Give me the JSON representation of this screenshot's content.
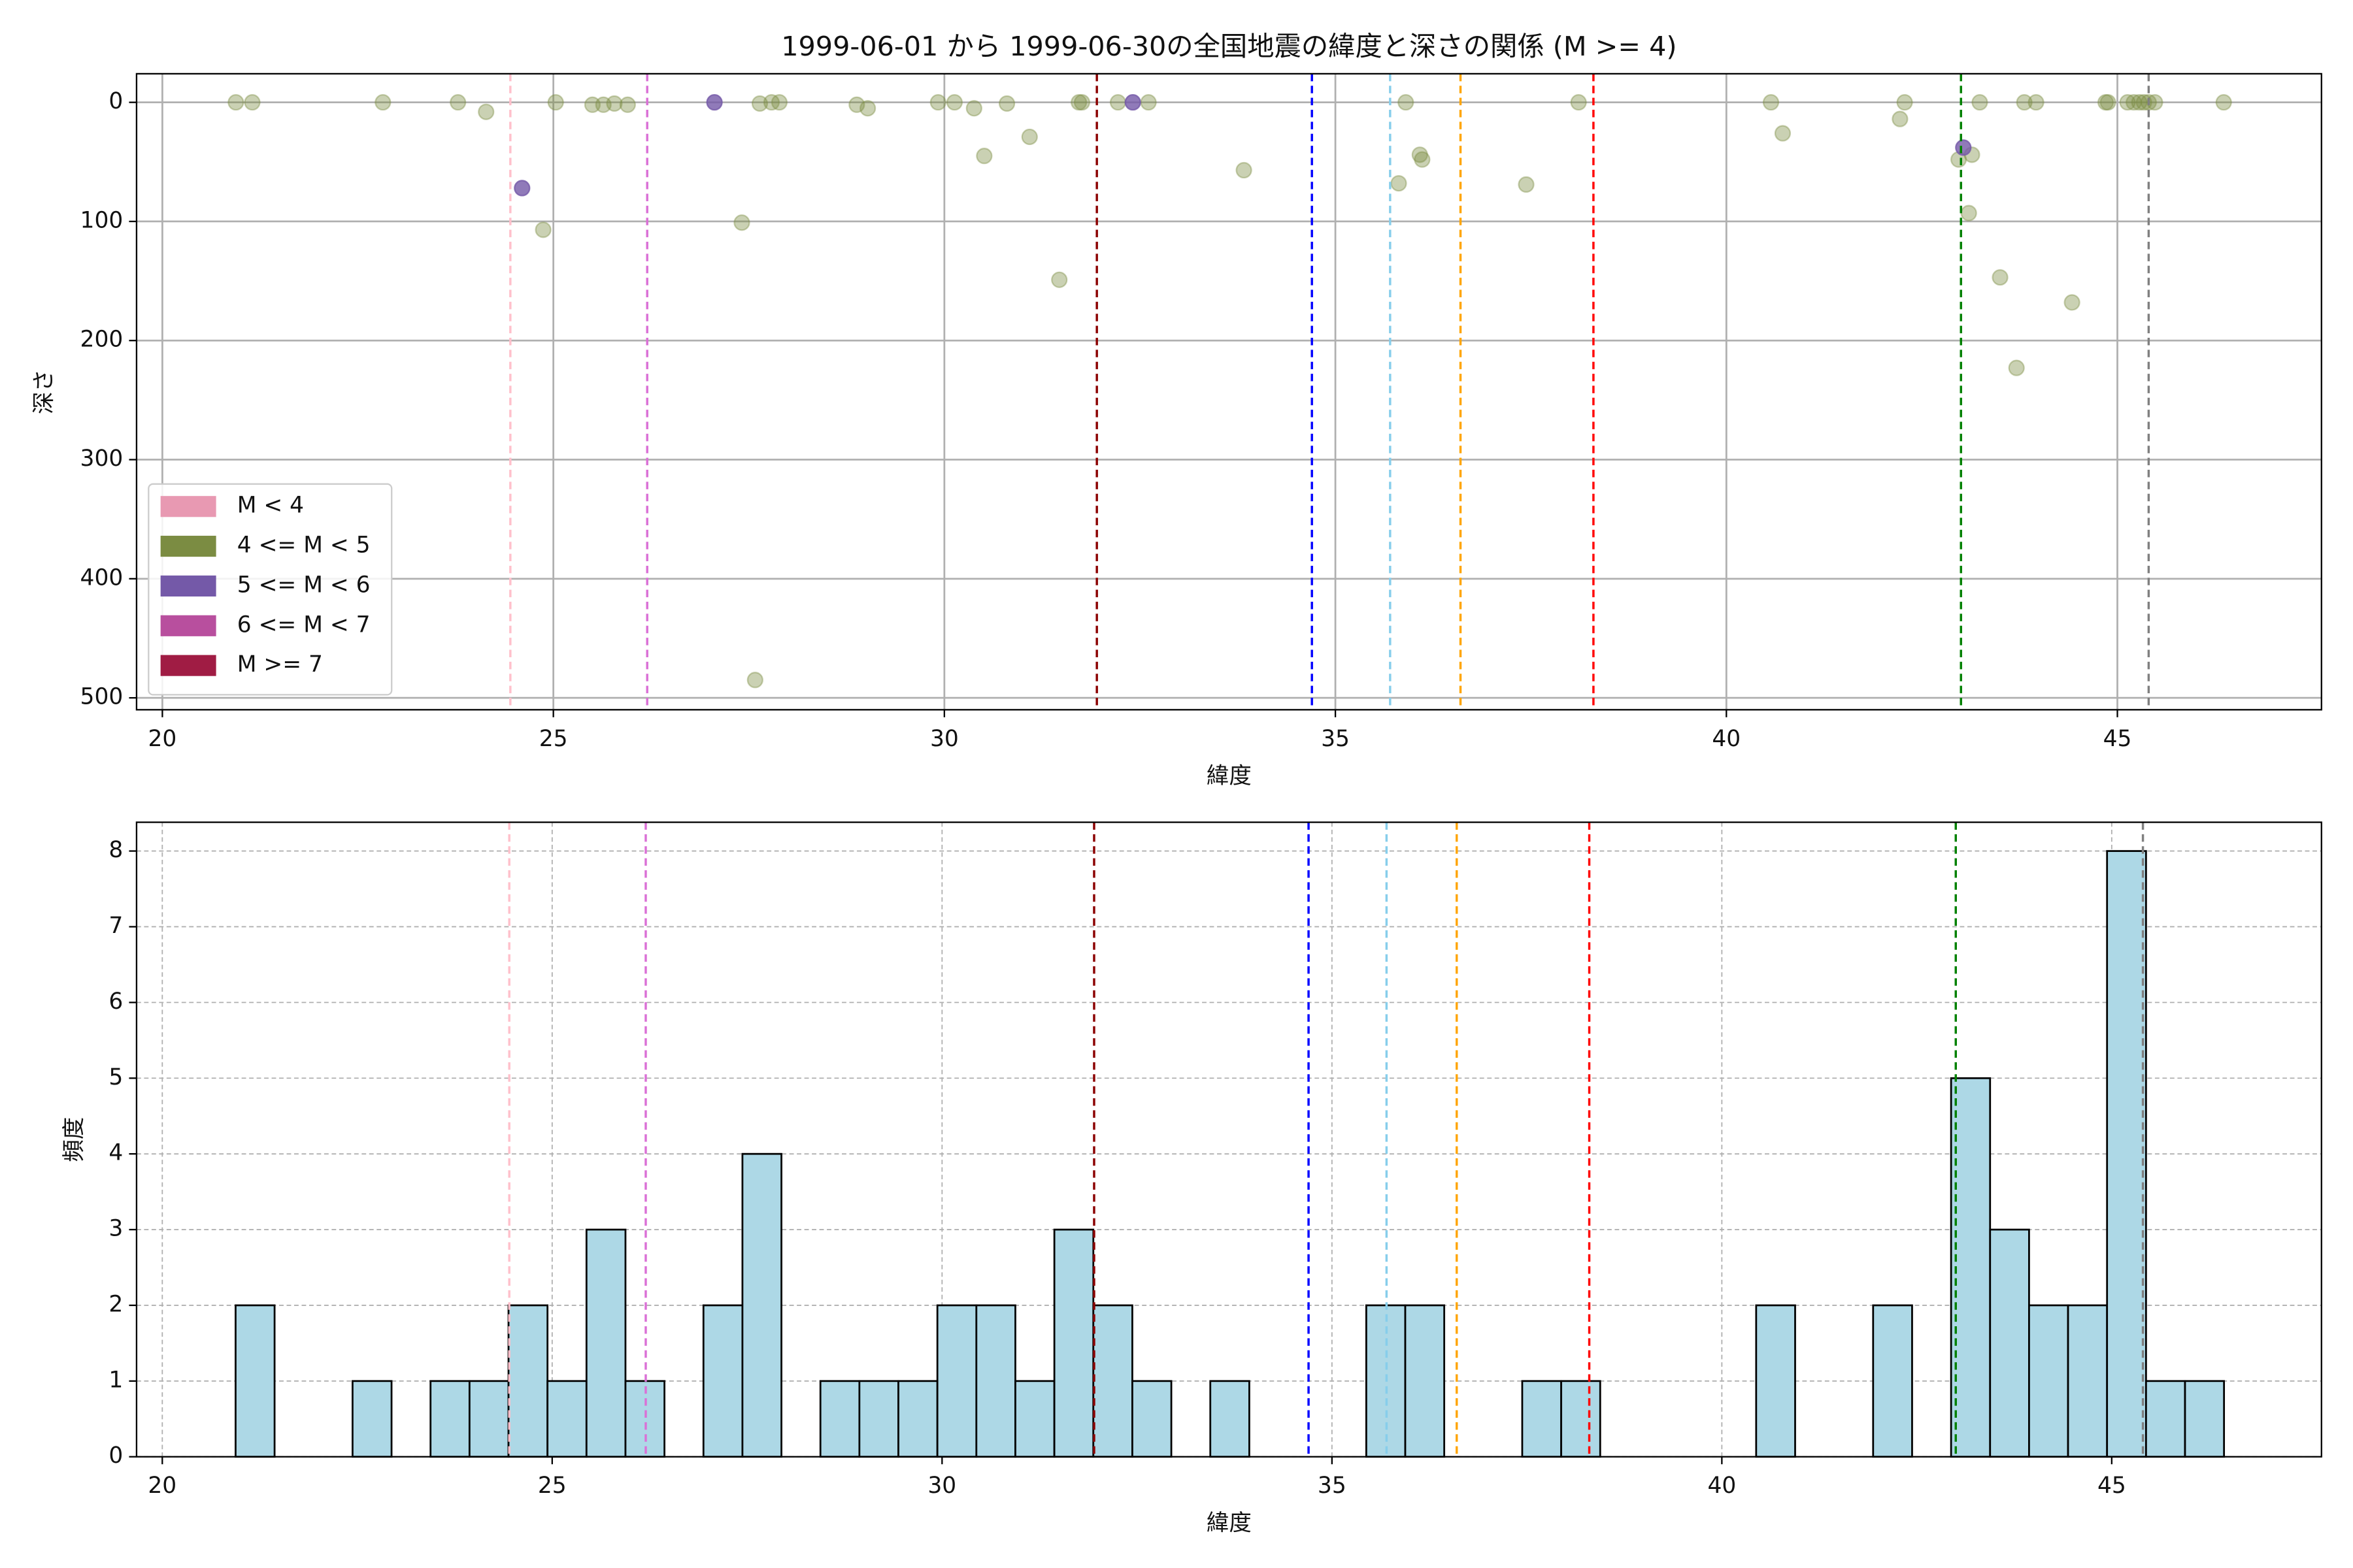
{
  "chart_data": [
    {
      "type": "scatter",
      "title": "1999-06-01 から 1999-06-30の全国地震の緯度と深さの関係 (M >= 4)",
      "x_label": "緯度",
      "y_label": "深さ",
      "xlim": [
        19.67,
        47.61
      ],
      "xticks": [
        20,
        25,
        30,
        35,
        40,
        45
      ],
      "ylim": [
        -24,
        510
      ],
      "yticks": [
        0,
        100,
        200,
        300,
        400,
        500
      ],
      "invert_y": true,
      "grid": true,
      "legend": "lower left",
      "series": [
        {
          "name": "M < 4",
          "color": "#e899b2",
          "alpha": 0.4,
          "x": [],
          "y": []
        },
        {
          "name": "4 <= M < 5",
          "color": "#7b8c42",
          "alpha": 0.4,
          "x": [
            20.94,
            21.15,
            22.82,
            23.78,
            24.14,
            24.87,
            25.03,
            25.5,
            25.64,
            25.78,
            25.95,
            27.41,
            27.58,
            27.64,
            27.79,
            27.89,
            28.88,
            29.02,
            29.92,
            30.13,
            30.38,
            30.51,
            30.8,
            31.09,
            31.47,
            31.72,
            31.76,
            32.22,
            32.61,
            33.83,
            35.81,
            35.9,
            36.08,
            36.11,
            37.44,
            38.11,
            40.57,
            40.72,
            42.22,
            42.28,
            42.97,
            43.14,
            43.1,
            43.24,
            43.5,
            43.71,
            43.81,
            43.96,
            44.42,
            44.85,
            44.88,
            45.13,
            45.21,
            45.28,
            45.34,
            45.4,
            45.48,
            46.36
          ],
          "y": [
            0,
            0,
            0,
            0,
            8,
            107,
            0,
            2,
            2,
            1,
            2,
            101,
            485,
            1,
            0,
            0,
            2,
            5,
            0,
            0,
            5,
            45,
            1,
            29,
            149,
            0,
            0,
            0,
            0,
            57,
            68,
            0,
            44,
            48,
            69,
            0,
            0,
            26,
            14,
            0,
            48,
            44,
            93,
            0,
            147,
            223,
            0,
            0,
            168,
            0,
            0,
            0,
            0,
            0,
            0,
            0,
            0,
            0
          ]
        },
        {
          "name": "5 <= M < 6",
          "color": "#7459a8",
          "alpha": 0.8,
          "x": [
            24.6,
            27.06,
            32.41,
            43.03
          ],
          "y": [
            72,
            0,
            0,
            38
          ]
        },
        {
          "name": "6 <= M < 7",
          "color": "#b84f9e",
          "alpha": 0.8,
          "x": [],
          "y": []
        },
        {
          "name": "M >= 7",
          "color": "#a01c44",
          "alpha": 0.8,
          "x": [],
          "y": []
        }
      ],
      "vlines": [
        {
          "x": 24.45,
          "color": "pink"
        },
        {
          "x": 26.2,
          "color": "orchid"
        },
        {
          "x": 31.95,
          "color": "darkred"
        },
        {
          "x": 34.7,
          "color": "blue"
        },
        {
          "x": 35.7,
          "color": "skyblue"
        },
        {
          "x": 36.6,
          "color": "orange"
        },
        {
          "x": 38.3,
          "color": "red"
        },
        {
          "x": 43.0,
          "color": "green"
        },
        {
          "x": 45.4,
          "color": "gray"
        }
      ]
    },
    {
      "type": "histogram",
      "x_label": "緯度",
      "y_label": "頻度",
      "color": "#add8e6",
      "xlim": [
        19.67,
        47.69
      ],
      "xticks": [
        20,
        25,
        30,
        35,
        40,
        45
      ],
      "ylim": [
        0,
        8.38
      ],
      "yticks": [
        0,
        1,
        2,
        3,
        4,
        5,
        6,
        7,
        8
      ],
      "grid": true,
      "bins": [
        20.94,
        21.44,
        21.94,
        22.44,
        22.94,
        23.44,
        23.94,
        24.44,
        24.94,
        25.44,
        25.94,
        26.44,
        26.94,
        27.44,
        27.94,
        28.44,
        28.94,
        29.44,
        29.94,
        30.44,
        30.94,
        31.44,
        31.94,
        32.44,
        32.94,
        33.44,
        33.94,
        34.44,
        34.94,
        35.44,
        35.94,
        36.44,
        36.94,
        37.44,
        37.94,
        38.44,
        38.94,
        39.44,
        39.94,
        40.44,
        40.94,
        41.44,
        41.94,
        42.44,
        42.94,
        43.44,
        43.94,
        44.44,
        44.94,
        45.44,
        45.94,
        46.44
      ],
      "values": [
        2,
        0,
        0,
        1,
        0,
        1,
        1,
        2,
        1,
        3,
        1,
        0,
        2,
        4,
        0,
        1,
        1,
        1,
        2,
        2,
        1,
        3,
        2,
        1,
        0,
        1,
        0,
        0,
        0,
        2,
        2,
        0,
        0,
        1,
        1,
        0,
        0,
        0,
        0,
        2,
        0,
        0,
        2,
        0,
        5,
        3,
        2,
        2,
        8,
        1,
        1
      ],
      "vlines": [
        {
          "x": 24.45,
          "color": "pink"
        },
        {
          "x": 26.2,
          "color": "orchid"
        },
        {
          "x": 31.95,
          "color": "darkred"
        },
        {
          "x": 34.7,
          "color": "blue"
        },
        {
          "x": 35.7,
          "color": "skyblue"
        },
        {
          "x": 36.6,
          "color": "orange"
        },
        {
          "x": 38.3,
          "color": "red"
        },
        {
          "x": 43.0,
          "color": "green"
        },
        {
          "x": 45.4,
          "color": "gray"
        }
      ]
    }
  ]
}
